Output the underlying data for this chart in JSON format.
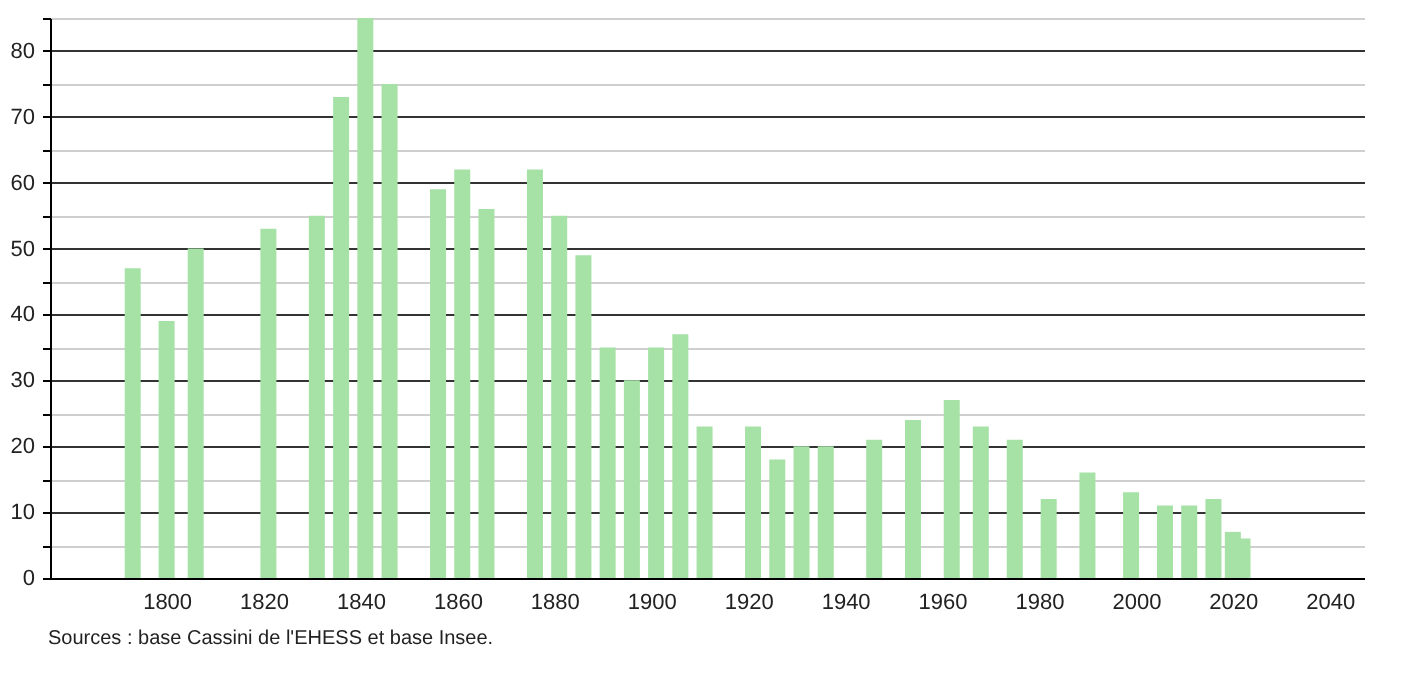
{
  "chart_data": {
    "type": "bar",
    "color": "#a6e2a6",
    "x": [
      1793,
      1800,
      1806,
      1821,
      1831,
      1836,
      1841,
      1846,
      1856,
      1861,
      1866,
      1876,
      1881,
      1886,
      1891,
      1896,
      1901,
      1906,
      1911,
      1921,
      1926,
      1931,
      1936,
      1946,
      1954,
      1962,
      1968,
      1975,
      1982,
      1990,
      1999,
      2006,
      2011,
      2016,
      2020,
      2022
    ],
    "values": [
      47,
      39,
      50,
      53,
      55,
      73,
      85,
      75,
      59,
      62,
      56,
      62,
      55,
      49,
      35,
      30,
      35,
      37,
      23,
      23,
      18,
      20,
      20,
      21,
      24,
      27,
      23,
      21,
      12,
      16,
      13,
      11,
      11,
      12,
      7,
      6
    ],
    "xlim": [
      1778,
      2045
    ],
    "xticks": [
      1800,
      1820,
      1840,
      1860,
      1880,
      1900,
      1920,
      1940,
      1960,
      1980,
      2000,
      2020,
      2040
    ],
    "ylim": [
      0,
      85
    ],
    "yticks": [
      0,
      {
        "value": 5,
        "label": null
      },
      10,
      {
        "value": 15,
        "label": null
      },
      20,
      {
        "value": 25,
        "label": null
      },
      30,
      {
        "value": 35,
        "label": null
      },
      40,
      {
        "value": 45,
        "label": null
      },
      50,
      {
        "value": 55,
        "label": null
      },
      60,
      {
        "value": 65,
        "label": null
      },
      70,
      {
        "value": 75,
        "label": null
      },
      80,
      {
        "value": 85,
        "label": null
      }
    ],
    "grid": "y",
    "annotations": [
      "Sources : base Cassini de l'EHESS et base Insee."
    ]
  }
}
